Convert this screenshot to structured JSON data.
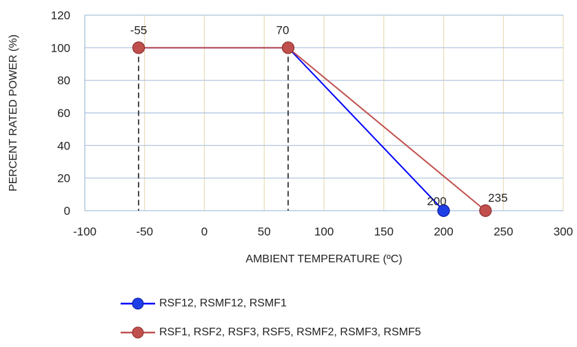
{
  "chart_data": {
    "type": "line",
    "title": "",
    "xlabel": "AMBIENT TEMPERATURE (ºC)",
    "ylabel": "PERCENT RATED POWER (%)",
    "xlim": [
      -100,
      300
    ],
    "ylim": [
      0,
      120
    ],
    "xticks": [
      -100,
      -50,
      0,
      50,
      100,
      150,
      200,
      250,
      300
    ],
    "yticks": [
      0,
      20,
      40,
      60,
      80,
      100,
      120
    ],
    "x_tick_labels": [
      "-100",
      "-50",
      "0",
      "50",
      "100",
      "150",
      "200",
      "250",
      "300"
    ],
    "y_tick_labels": [
      "0",
      "20",
      "40",
      "60",
      "80",
      "100",
      "120"
    ],
    "grid": true,
    "legend_position": "bottom",
    "series": [
      {
        "name": "RSF12, RSMF12, RSMF1",
        "color": "#0000ff",
        "points": [
          [
            -55,
            100
          ],
          [
            70,
            100
          ],
          [
            200,
            0
          ]
        ],
        "marker_points": [
          [
            200,
            0
          ]
        ]
      },
      {
        "name": "RSF1, RSF2, RSF3, RSF5, RSMF2, RSMF3, RSMF5",
        "color": "#c0504d",
        "points": [
          [
            -55,
            100
          ],
          [
            70,
            100
          ],
          [
            235,
            0
          ]
        ],
        "marker_points": [
          [
            -55,
            100
          ],
          [
            70,
            100
          ],
          [
            235,
            0
          ]
        ]
      }
    ],
    "dashed_verticals": [
      {
        "x": -55,
        "y_top": 100
      },
      {
        "x": 70,
        "y_top": 100
      }
    ],
    "point_labels": [
      {
        "text": "-55",
        "x": -55,
        "y": 100
      },
      {
        "text": "70",
        "x": 70,
        "y": 100
      },
      {
        "text": "200",
        "x": 200,
        "y": 0
      },
      {
        "text": "235",
        "x": 235,
        "y": 0
      }
    ]
  }
}
